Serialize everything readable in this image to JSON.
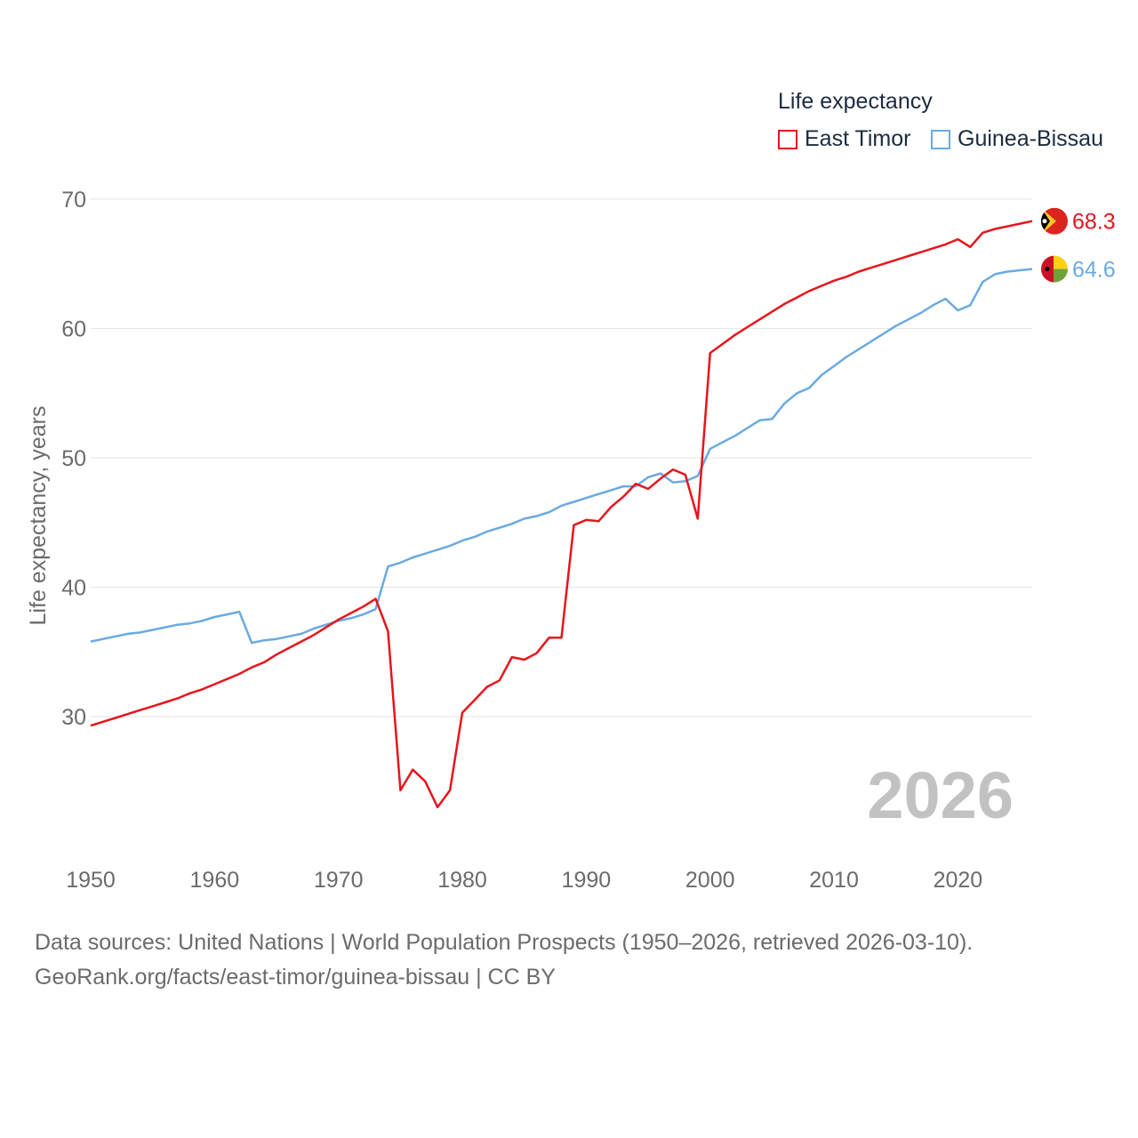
{
  "chart_data": {
    "type": "line",
    "ylabel": "Life expectancy, years",
    "xlim": [
      1950,
      2026
    ],
    "ylim": [
      20,
      70
    ],
    "yticks": [
      30,
      40,
      50,
      60,
      70
    ],
    "xticks": [
      1950,
      1960,
      1970,
      1980,
      1990,
      2000,
      2010,
      2020
    ],
    "year_label": "2026",
    "legend_title": "Life expectancy",
    "legend_position": "top-right",
    "series": [
      {
        "name": "East Timor",
        "color": "#e8141c",
        "end_label": "68.3",
        "flag": "east-timor-flag",
        "x": [
          1950,
          1951,
          1952,
          1953,
          1954,
          1955,
          1956,
          1957,
          1958,
          1959,
          1960,
          1961,
          1962,
          1963,
          1964,
          1965,
          1966,
          1967,
          1968,
          1969,
          1970,
          1971,
          1972,
          1973,
          1974,
          1975,
          1976,
          1977,
          1978,
          1979,
          1980,
          1981,
          1982,
          1983,
          1984,
          1985,
          1986,
          1987,
          1988,
          1989,
          1990,
          1991,
          1992,
          1993,
          1994,
          1995,
          1996,
          1997,
          1998,
          1999,
          2000,
          2001,
          2002,
          2003,
          2004,
          2005,
          2006,
          2007,
          2008,
          2009,
          2010,
          2011,
          2012,
          2013,
          2014,
          2015,
          2016,
          2017,
          2018,
          2019,
          2020,
          2021,
          2022,
          2023,
          2024,
          2025,
          2026
        ],
        "values": [
          29.3,
          29.6,
          29.9,
          30.2,
          30.5,
          30.8,
          31.1,
          31.4,
          31.8,
          32.1,
          32.5,
          32.9,
          33.3,
          33.8,
          34.2,
          34.8,
          35.3,
          35.8,
          36.3,
          36.9,
          37.5,
          38.0,
          38.5,
          39.1,
          36.6,
          24.3,
          25.9,
          25.0,
          23.0,
          24.3,
          30.3,
          31.3,
          32.3,
          32.8,
          34.6,
          34.4,
          34.9,
          36.1,
          36.1,
          44.8,
          45.2,
          45.1,
          46.2,
          47.0,
          48.0,
          47.6,
          48.4,
          49.1,
          48.7,
          45.3,
          58.1,
          58.8,
          59.5,
          60.1,
          60.7,
          61.3,
          61.9,
          62.4,
          62.9,
          63.3,
          63.7,
          64.0,
          64.4,
          64.7,
          65.0,
          65.3,
          65.6,
          65.9,
          66.2,
          66.5,
          66.9,
          66.3,
          67.4,
          67.7,
          67.9,
          68.1,
          68.3
        ]
      },
      {
        "name": "Guinea-Bissau",
        "color": "#6aaae2",
        "end_label": "64.6",
        "flag": "guinea-bissau-flag",
        "x": [
          1950,
          1951,
          1952,
          1953,
          1954,
          1955,
          1956,
          1957,
          1958,
          1959,
          1960,
          1961,
          1962,
          1963,
          1964,
          1965,
          1966,
          1967,
          1968,
          1969,
          1970,
          1971,
          1972,
          1973,
          1974,
          1975,
          1976,
          1977,
          1978,
          1979,
          1980,
          1981,
          1982,
          1983,
          1984,
          1985,
          1986,
          1987,
          1988,
          1989,
          1990,
          1991,
          1992,
          1993,
          1994,
          1995,
          1996,
          1997,
          1998,
          1999,
          2000,
          2001,
          2002,
          2003,
          2004,
          2005,
          2006,
          2007,
          2008,
          2009,
          2010,
          2011,
          2012,
          2013,
          2014,
          2015,
          2016,
          2017,
          2018,
          2019,
          2020,
          2021,
          2022,
          2023,
          2024,
          2025,
          2026
        ],
        "values": [
          35.8,
          36.0,
          36.2,
          36.4,
          36.5,
          36.7,
          36.9,
          37.1,
          37.2,
          37.4,
          37.7,
          37.9,
          38.1,
          35.7,
          35.9,
          36.0,
          36.2,
          36.4,
          36.8,
          37.1,
          37.4,
          37.6,
          37.9,
          38.3,
          41.6,
          41.9,
          42.3,
          42.6,
          42.9,
          43.2,
          43.6,
          43.9,
          44.3,
          44.6,
          44.9,
          45.3,
          45.5,
          45.8,
          46.3,
          46.6,
          46.9,
          47.2,
          47.5,
          47.8,
          47.8,
          48.5,
          48.8,
          48.1,
          48.2,
          48.6,
          50.7,
          51.2,
          51.7,
          52.3,
          52.9,
          53.0,
          54.2,
          55.0,
          55.4,
          56.4,
          57.1,
          57.8,
          58.4,
          59.0,
          59.6,
          60.2,
          60.7,
          61.2,
          61.8,
          62.3,
          61.4,
          61.8,
          63.6,
          64.2,
          64.4,
          64.5,
          64.6
        ]
      }
    ]
  },
  "footer": {
    "source_line": "Data sources: United Nations | World Population Prospects (1950–2026, retrieved 2026-03-10).",
    "url_line": "GeoRank.org/facts/east-timor/guinea-bissau | CC BY"
  }
}
